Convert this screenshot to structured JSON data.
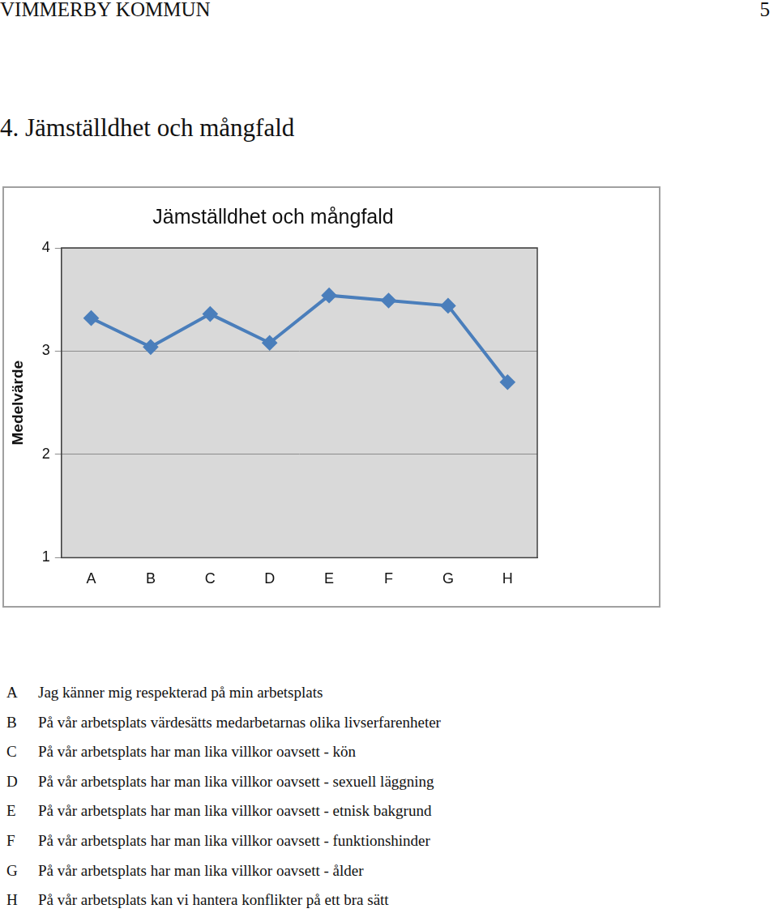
{
  "header": {
    "left": "VIMMERBY KOMMUN",
    "page": "5"
  },
  "heading": "4. Jämställdhet och mångfald",
  "chart_data": {
    "type": "line",
    "title": "Jämställdhet och mångfald",
    "y_label": "Medelvärde",
    "categories": [
      "A",
      "B",
      "C",
      "D",
      "E",
      "F",
      "G",
      "H"
    ],
    "values": [
      3.32,
      3.04,
      3.36,
      3.08,
      3.54,
      3.49,
      3.44,
      2.7
    ],
    "color": "#4a7ebb",
    "marker": "diamond",
    "line_style": "solid",
    "ylim": [
      1,
      4
    ],
    "yticks": [
      1,
      2,
      3,
      4
    ],
    "grid": true
  },
  "legend_items": [
    {
      "letter": "A",
      "text": "Jag känner mig respekterad på min arbetsplats"
    },
    {
      "letter": "B",
      "text": "På vår arbetsplats värdesätts medarbetarnas olika livserfarenheter"
    },
    {
      "letter": "C",
      "text": "På vår arbetsplats har man lika villkor oavsett - kön"
    },
    {
      "letter": "D",
      "text": "På vår arbetsplats har man lika villkor oavsett - sexuell läggning"
    },
    {
      "letter": "E",
      "text": "På vår arbetsplats har man lika villkor oavsett - etnisk bakgrund"
    },
    {
      "letter": "F",
      "text": "På vår arbetsplats har man lika villkor oavsett - funktionshinder"
    },
    {
      "letter": "G",
      "text": "På vår arbetsplats har man lika villkor oavsett - ålder"
    },
    {
      "letter": "H",
      "text": "På vår arbetsplats kan vi hantera konflikter på ett bra sätt"
    }
  ]
}
